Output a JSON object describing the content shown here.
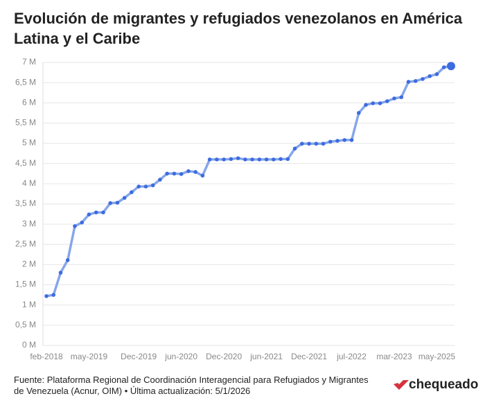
{
  "chart_data": {
    "type": "line",
    "title": "Evolución de migrantes y refugiados venezolanos en América Latina y el Caribe",
    "source": "Fuente: Plataforma Regional de Coordinación Interagencial para Refugiados y Migrantes de Venezuela (Acnur, OIM) • Última actualización: 5/1/2026",
    "brand": "chequeado",
    "categories": [
      "feb-2018",
      null,
      null,
      null,
      null,
      null,
      "may-2019",
      null,
      null,
      null,
      null,
      null,
      null,
      "Dec-2019",
      null,
      null,
      null,
      null,
      null,
      "jun-2020",
      null,
      null,
      null,
      null,
      null,
      "Dec-2020",
      null,
      null,
      null,
      null,
      null,
      "jun-2021",
      null,
      null,
      null,
      null,
      null,
      "Dec-2021",
      null,
      null,
      null,
      null,
      null,
      "jul-2022",
      null,
      null,
      null,
      null,
      null,
      "mar-2023",
      null,
      null,
      null,
      null,
      null,
      "may-2025",
      null,
      null
    ],
    "series": [
      {
        "name": "Migrantes y refugiados",
        "color": "#3d6ce0",
        "line_color": "#86a6ea",
        "values": [
          1.22,
          1.25,
          1.8,
          2.11,
          2.95,
          3.04,
          3.24,
          3.29,
          3.29,
          3.52,
          3.53,
          3.65,
          3.79,
          3.93,
          3.93,
          3.96,
          4.1,
          4.25,
          4.25,
          4.24,
          4.31,
          4.29,
          4.2,
          4.6,
          4.6,
          4.6,
          4.61,
          4.63,
          4.6,
          4.6,
          4.6,
          4.6,
          4.6,
          4.61,
          4.61,
          4.87,
          4.99,
          4.99,
          4.99,
          4.99,
          5.04,
          5.06,
          5.08,
          5.08,
          5.75,
          5.95,
          5.99,
          5.99,
          6.04,
          6.11,
          6.14,
          6.52,
          6.54,
          6.59,
          6.66,
          6.71,
          6.88,
          6.91
        ]
      }
    ],
    "ylim": [
      0,
      7
    ],
    "yticks": [
      {
        "value": 0,
        "label": "0 M"
      },
      {
        "value": 0.5,
        "label": "0,5 M"
      },
      {
        "value": 1,
        "label": "1 M"
      },
      {
        "value": 1.5,
        "label": "1,5 M"
      },
      {
        "value": 2,
        "label": "2 M"
      },
      {
        "value": 2.5,
        "label": "2,5 M"
      },
      {
        "value": 3,
        "label": "3 M"
      },
      {
        "value": 3.5,
        "label": "3,5 M"
      },
      {
        "value": 4,
        "label": "4 M"
      },
      {
        "value": 4.5,
        "label": "4,5 M"
      },
      {
        "value": 5,
        "label": "5 M"
      },
      {
        "value": 5.5,
        "label": "5,5 M"
      },
      {
        "value": 6,
        "label": "6 M"
      },
      {
        "value": 6.5,
        "label": "6,5 M"
      },
      {
        "value": 7,
        "label": "7 M"
      }
    ],
    "grid": true
  }
}
